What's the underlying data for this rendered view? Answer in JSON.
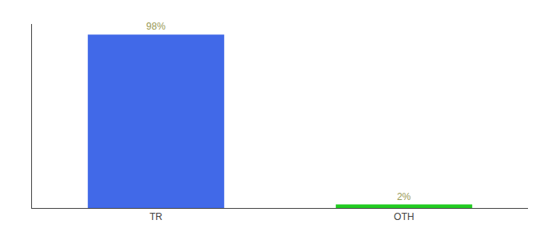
{
  "chart_data": {
    "type": "bar",
    "categories": [
      "TR",
      "OTH"
    ],
    "values": [
      98,
      2
    ],
    "value_labels": [
      "98%",
      "2%"
    ],
    "colors": [
      "#4169e8",
      "#22cc22"
    ],
    "ylim": [
      0,
      104
    ],
    "yticks": [],
    "data_labels": true,
    "tick_labels": "x",
    "grid": false
  }
}
